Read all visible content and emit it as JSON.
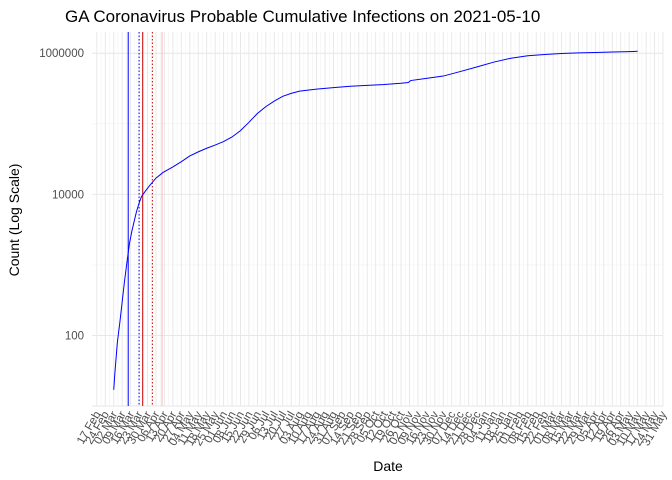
{
  "chart_data": {
    "type": "line",
    "title": "GA Coronavirus Probable Cumulative Infections on 2021-05-10",
    "xlabel": "Date",
    "ylabel": "Count (Log Scale)",
    "scale": "log10",
    "grid": true,
    "legend": "none",
    "xlim": [
      "2020-02-13",
      "2021-05-31"
    ],
    "ylim": [
      10,
      2000000
    ],
    "y_ticks": [
      {
        "value": 100,
        "label": "100"
      },
      {
        "value": 10000,
        "label": "10000"
      },
      {
        "value": 1000000,
        "label": "1000000"
      }
    ],
    "x_tick_labels": [
      "17 Feb",
      "24 Feb",
      "02 Mar",
      "09 Mar",
      "16 Mar",
      "23 Mar",
      "30 Mar",
      "06 Apr",
      "13 Apr",
      "20 Apr",
      "27 Apr",
      "04 May",
      "11 May",
      "18 May",
      "25 May",
      "01 Jun",
      "08 Jun",
      "15 Jun",
      "22 Jun",
      "29 Jun",
      "06 Jul",
      "13 Jul",
      "20 Jul",
      "27 Jul",
      "03 Aug",
      "10 Aug",
      "17 Aug",
      "24 Aug",
      "31 Aug",
      "07 Sep",
      "14 Sep",
      "21 Sep",
      "28 Sep",
      "05 Oct",
      "12 Oct",
      "19 Oct",
      "26 Oct",
      "02 Nov",
      "09 Nov",
      "16 Nov",
      "23 Nov",
      "30 Nov",
      "07 Dec",
      "14 Dec",
      "21 Dec",
      "28 Dec",
      "04 Jan",
      "11 Jan",
      "18 Jan",
      "25 Jan",
      "01 Feb",
      "08 Feb",
      "15 Feb",
      "22 Feb",
      "01 Mar",
      "08 Mar",
      "15 Mar",
      "22 Mar",
      "29 Mar",
      "05 Apr",
      "12 Apr",
      "19 Apr",
      "26 Apr",
      "03 May",
      "10 May",
      "17 May",
      "24 May",
      "31 May"
    ],
    "x_tick_start": "2020-02-17",
    "x_tick_step_days": 7,
    "series": [
      {
        "color": "#0000ff",
        "points": [
          [
            "2020-03-02",
            17
          ],
          [
            "2020-03-03",
            30
          ],
          [
            "2020-03-05",
            80
          ],
          [
            "2020-03-07",
            150
          ],
          [
            "2020-03-09",
            300
          ],
          [
            "2020-03-11",
            600
          ],
          [
            "2020-03-13",
            1100
          ],
          [
            "2020-03-15",
            2000
          ],
          [
            "2020-03-17",
            3000
          ],
          [
            "2020-03-19",
            4200
          ],
          [
            "2020-03-21",
            5800
          ],
          [
            "2020-03-23",
            7500
          ],
          [
            "2020-03-25",
            9300
          ],
          [
            "2020-03-28",
            11000
          ],
          [
            "2020-04-01",
            13500
          ],
          [
            "2020-04-06",
            17000
          ],
          [
            "2020-04-12",
            20500
          ],
          [
            "2020-04-20",
            24500
          ],
          [
            "2020-04-27",
            29000
          ],
          [
            "2020-05-04",
            35000
          ],
          [
            "2020-05-11",
            40000
          ],
          [
            "2020-05-18",
            45000
          ],
          [
            "2020-05-25",
            50000
          ],
          [
            "2020-06-01",
            56000
          ],
          [
            "2020-06-08",
            65000
          ],
          [
            "2020-06-15",
            80000
          ],
          [
            "2020-06-22",
            105000
          ],
          [
            "2020-06-29",
            140000
          ],
          [
            "2020-07-06",
            175000
          ],
          [
            "2020-07-13",
            210000
          ],
          [
            "2020-07-20",
            245000
          ],
          [
            "2020-07-27",
            270000
          ],
          [
            "2020-08-03",
            290000
          ],
          [
            "2020-08-17",
            310000
          ],
          [
            "2020-08-31",
            325000
          ],
          [
            "2020-09-14",
            340000
          ],
          [
            "2020-09-28",
            350000
          ],
          [
            "2020-10-12",
            360000
          ],
          [
            "2020-10-26",
            375000
          ],
          [
            "2020-11-01",
            385000
          ],
          [
            "2020-11-03",
            410000
          ],
          [
            "2020-11-16",
            440000
          ],
          [
            "2020-11-30",
            475000
          ],
          [
            "2020-12-14",
            550000
          ],
          [
            "2020-12-28",
            640000
          ],
          [
            "2021-01-11",
            750000
          ],
          [
            "2021-01-25",
            850000
          ],
          [
            "2021-02-08",
            920000
          ],
          [
            "2021-02-22",
            960000
          ],
          [
            "2021-03-08",
            990000
          ],
          [
            "2021-03-22",
            1010000
          ],
          [
            "2021-04-05",
            1025000
          ],
          [
            "2021-04-19",
            1040000
          ],
          [
            "2021-05-03",
            1055000
          ],
          [
            "2021-05-10",
            1065000
          ]
        ]
      }
    ],
    "reference_lines": [
      {
        "date": "2020-03-14",
        "color": "#0000ff",
        "style": "solid"
      },
      {
        "date": "2020-03-23",
        "color": "#0000ff",
        "style": "dotted"
      },
      {
        "date": "2020-03-26",
        "color": "#cc0000",
        "style": "solid"
      },
      {
        "date": "2020-04-03",
        "color": "#cc0000",
        "style": "dotted"
      },
      {
        "date": "2020-04-11",
        "color": "#ffb3b3",
        "style": "solid"
      }
    ]
  }
}
